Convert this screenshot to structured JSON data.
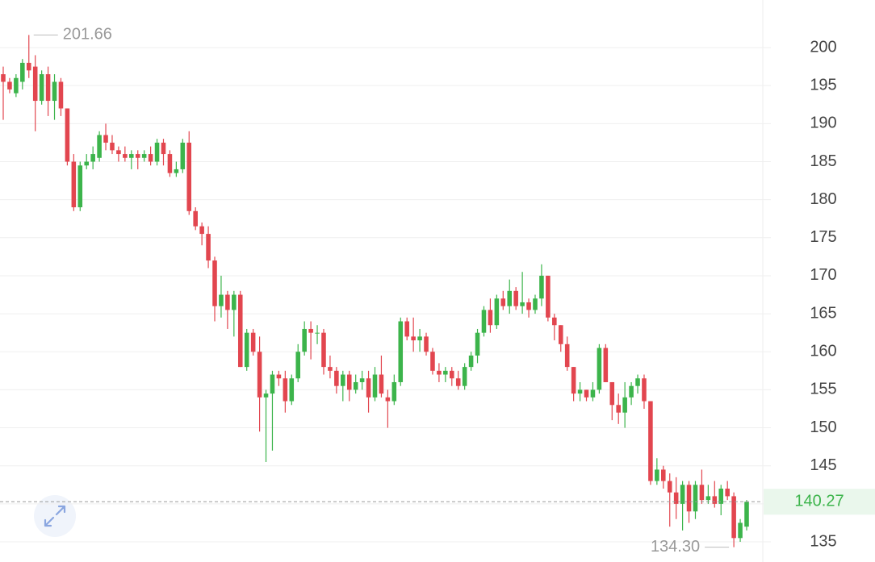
{
  "chart_data": {
    "type": "candlestick",
    "open": [
      196.5,
      195.5,
      194,
      195.5,
      198,
      197.5,
      193,
      196.5,
      193,
      195.5,
      192,
      185,
      179,
      184.5,
      185,
      185.5,
      188.5,
      187.5,
      186.5,
      186,
      185.5,
      186,
      185.5,
      186,
      185,
      187.5,
      186,
      183.5,
      184,
      187.5,
      178.5,
      176.5,
      175.5,
      172,
      166,
      167.5,
      165.5,
      167.5,
      158,
      162.5,
      160,
      154,
      154.5,
      157,
      156.5,
      153.5,
      156.5,
      160,
      163,
      162.5,
      162.5,
      158,
      157.5,
      155.5,
      157,
      155,
      156,
      156.5,
      154,
      157,
      154,
      153.5,
      156,
      164,
      162,
      161.5,
      162,
      160,
      157.5,
      157,
      157.5,
      156.5,
      155.5,
      158,
      159.5,
      162.5,
      165.5,
      163.5,
      167,
      166,
      168,
      166,
      166.5,
      165.5,
      167,
      170,
      164.5,
      163.5,
      161,
      158,
      154.5,
      155,
      154,
      155,
      160.5,
      156,
      153,
      152,
      154,
      155.5,
      156.5,
      153.5,
      143,
      144.5,
      143,
      141.5,
      140,
      142.5,
      139,
      142.5,
      140.5,
      141,
      140,
      142,
      141,
      135.5,
      137
    ],
    "high": [
      197.5,
      196,
      196.5,
      198.5,
      201.66,
      199,
      197,
      197.5,
      196.5,
      196,
      192,
      186,
      185,
      186,
      187,
      189,
      190,
      188.5,
      187,
      187,
      186.5,
      186.5,
      186.5,
      187,
      188,
      188,
      186.5,
      185,
      188,
      189,
      179,
      177,
      176.5,
      172.5,
      170,
      168,
      168,
      168,
      163,
      163,
      162,
      155,
      157.5,
      157.5,
      157.5,
      157,
      161,
      164,
      164,
      163.5,
      163,
      159.5,
      158,
      157.5,
      157.5,
      157,
      157.5,
      157.5,
      158,
      159.5,
      155,
      157,
      164.5,
      164.5,
      164.5,
      163,
      162.5,
      160.5,
      158.5,
      158,
      158,
      157.5,
      158.5,
      160,
      163,
      166,
      167,
      167.5,
      168,
      169.5,
      168.5,
      170.5,
      167,
      167.5,
      171.5,
      170,
      165,
      163.5,
      162,
      158,
      156,
      155,
      156,
      161,
      161,
      156,
      154.5,
      156,
      156,
      157,
      157,
      153.5,
      146,
      145,
      144,
      143.5,
      143,
      143,
      143,
      144.5,
      142.5,
      143,
      142.5,
      143,
      141.5,
      138,
      140.5
    ],
    "low": [
      190.5,
      194,
      193.5,
      194.5,
      196,
      189,
      192.5,
      191,
      190.5,
      191,
      184.5,
      178.5,
      178.5,
      184,
      184,
      185,
      186.5,
      186,
      185,
      185,
      184,
      184,
      185,
      184.5,
      184.5,
      184.5,
      183,
      183,
      183.5,
      178,
      176,
      174,
      171,
      164,
      164.5,
      163,
      162,
      158,
      157.5,
      159.5,
      149.5,
      145.5,
      147,
      155.5,
      152,
      153,
      156,
      159.5,
      159,
      161,
      157,
      156.5,
      154.5,
      153.5,
      153.5,
      154.5,
      155,
      152,
      153.5,
      154,
      150,
      153,
      155.5,
      161.5,
      160,
      160,
      159.5,
      157,
      156,
      156,
      155.5,
      155,
      155,
      157.5,
      158.5,
      162,
      162.5,
      163,
      165.5,
      165,
      165.5,
      165,
      164.5,
      165,
      166,
      164,
      161.5,
      160,
      157.5,
      153.5,
      153.5,
      153.5,
      153.5,
      154.5,
      156,
      151,
      150.5,
      150,
      153,
      154.5,
      152.5,
      142.5,
      142.5,
      142,
      137,
      138,
      136.5,
      137.5,
      138,
      140,
      140,
      139.5,
      138.5,
      140.5,
      134.3,
      135,
      136.5
    ],
    "close": [
      195.5,
      194.5,
      196,
      198,
      197,
      193,
      196.5,
      193,
      195.5,
      192,
      185,
      179,
      184.5,
      185,
      186,
      188.5,
      187.5,
      186.5,
      186,
      185.5,
      186,
      185.5,
      186,
      185,
      187.5,
      186,
      183.5,
      184,
      187.5,
      178.5,
      176.5,
      175.5,
      172,
      166,
      167.5,
      165.5,
      167.5,
      158,
      162.5,
      160,
      154,
      154.5,
      157,
      156.5,
      153.5,
      156.5,
      160,
      163,
      162.5,
      162.5,
      158,
      157.5,
      155.5,
      157,
      155,
      156,
      156.5,
      154,
      157,
      154.5,
      153.5,
      156,
      164,
      162,
      161.5,
      162,
      160,
      157.5,
      157,
      157.5,
      156.5,
      155.5,
      158,
      159.5,
      162.5,
      165.5,
      163.5,
      167,
      166,
      168,
      166,
      166.5,
      165.5,
      167,
      170,
      164.5,
      163.5,
      161,
      158,
      154.5,
      155,
      154,
      155,
      160.5,
      156,
      153,
      152,
      154,
      155.5,
      156.5,
      153.5,
      143,
      144.5,
      143,
      141.5,
      140,
      142.5,
      139,
      142.5,
      140.5,
      141,
      140,
      142,
      141,
      135.5,
      137.5,
      140.27
    ],
    "up_color": "#3cb44b",
    "down_color": "#e2464f",
    "ylim": [
      132.35,
      206.26
    ],
    "yticks": [
      135,
      140,
      145,
      150,
      155,
      160,
      165,
      170,
      175,
      180,
      185,
      190,
      195,
      200
    ],
    "grid": true,
    "last_price": 140.27,
    "max_price": 201.66,
    "min_price": {
      "value": 134.3,
      "label": "134.30"
    }
  }
}
